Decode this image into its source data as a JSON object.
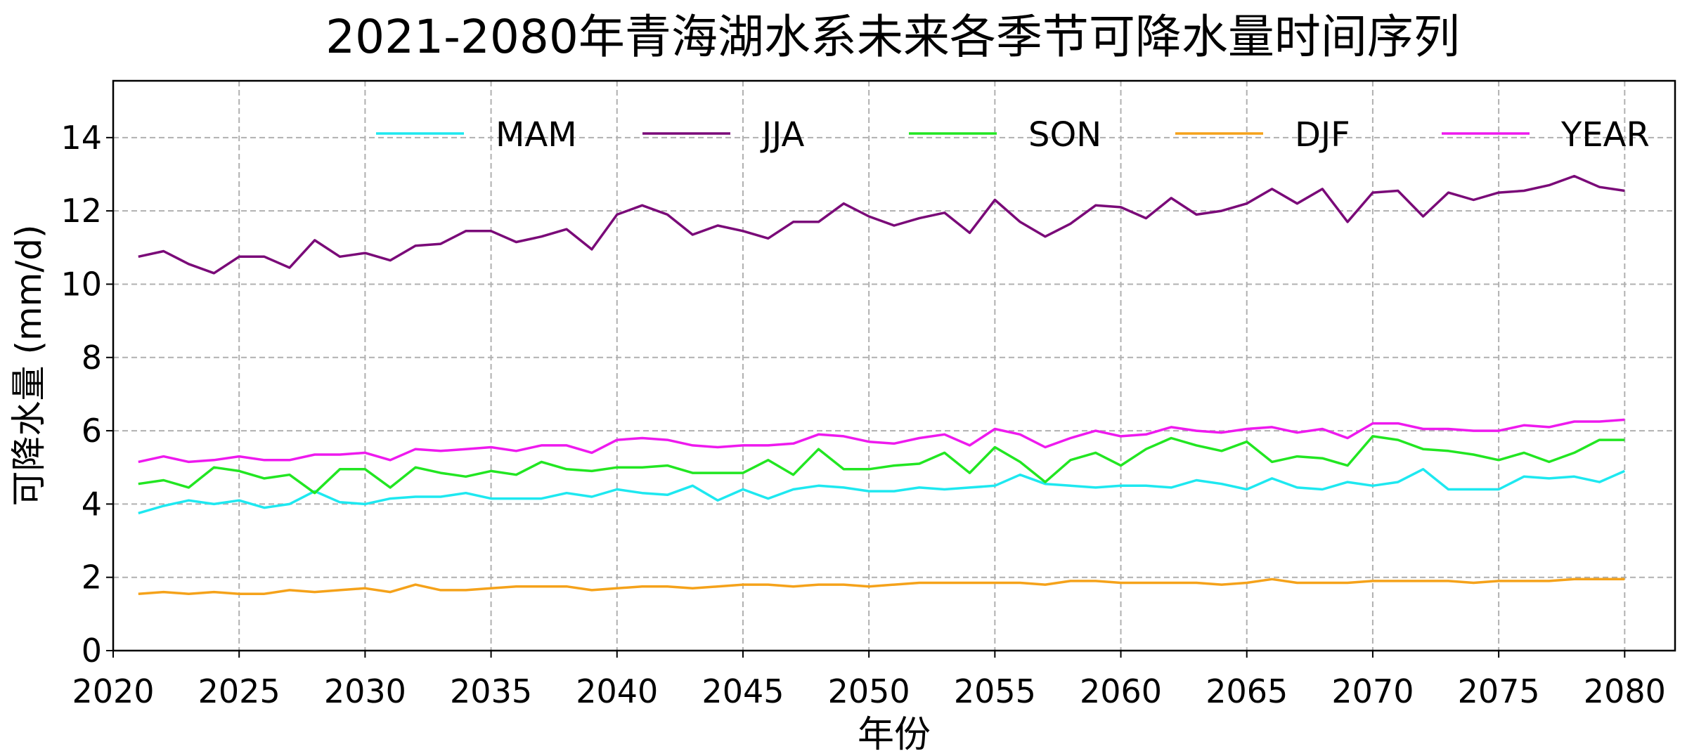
{
  "chart_data": {
    "type": "line",
    "title": "2021-2080年青海湖水系未来各季节可降水量时间序列",
    "xlabel": "年份",
    "ylabel": "可降水量 (mm/d)",
    "xlim": [
      2020,
      2082
    ],
    "ylim": [
      0,
      15.55
    ],
    "xticks": [
      2020,
      2025,
      2030,
      2035,
      2040,
      2045,
      2050,
      2055,
      2060,
      2065,
      2070,
      2075,
      2080
    ],
    "yticks": [
      0,
      2,
      4,
      6,
      8,
      10,
      12,
      14
    ],
    "grid": true,
    "legend_placement": "top",
    "x_start": 2021,
    "series": [
      {
        "name": "MAM",
        "color": "#1ee8f0",
        "values": [
          3.75,
          3.95,
          4.1,
          4.0,
          4.1,
          3.9,
          4.0,
          4.35,
          4.05,
          4.0,
          4.15,
          4.2,
          4.2,
          4.3,
          4.15,
          4.15,
          4.15,
          4.3,
          4.2,
          4.4,
          4.3,
          4.25,
          4.5,
          4.1,
          4.4,
          4.15,
          4.4,
          4.5,
          4.45,
          4.35,
          4.35,
          4.45,
          4.4,
          4.45,
          4.5,
          4.8,
          4.55,
          4.5,
          4.45,
          4.5,
          4.5,
          4.45,
          4.65,
          4.55,
          4.4,
          4.7,
          4.45,
          4.4,
          4.6,
          4.5,
          4.6,
          4.95,
          4.4,
          4.4,
          4.4,
          4.75,
          4.7,
          4.75,
          4.6,
          4.9
        ]
      },
      {
        "name": "JJA",
        "color": "#7a0a78",
        "values": [
          10.75,
          10.9,
          10.55,
          10.3,
          10.75,
          10.75,
          10.45,
          11.2,
          10.75,
          10.85,
          10.65,
          11.05,
          11.1,
          11.45,
          11.45,
          11.15,
          11.3,
          11.5,
          10.95,
          11.9,
          12.15,
          11.9,
          11.35,
          11.6,
          11.45,
          11.25,
          11.7,
          11.7,
          12.2,
          11.85,
          11.6,
          11.8,
          11.95,
          11.4,
          12.3,
          11.7,
          11.3,
          11.65,
          12.15,
          12.1,
          11.8,
          12.35,
          11.9,
          12.0,
          12.2,
          12.6,
          12.2,
          12.6,
          11.7,
          12.5,
          12.55,
          11.85,
          12.5,
          12.3,
          12.5,
          12.55,
          12.7,
          12.95,
          12.65,
          12.55
        ]
      },
      {
        "name": "SON",
        "color": "#22e622",
        "values": [
          4.55,
          4.65,
          4.45,
          5.0,
          4.9,
          4.7,
          4.8,
          4.3,
          4.95,
          4.95,
          4.45,
          5.0,
          4.85,
          4.75,
          4.9,
          4.8,
          5.15,
          4.95,
          4.9,
          5.0,
          5.0,
          5.05,
          4.85,
          4.85,
          4.85,
          5.2,
          4.8,
          5.5,
          4.95,
          4.95,
          5.05,
          5.1,
          5.4,
          4.85,
          5.55,
          5.15,
          4.6,
          5.2,
          5.4,
          5.05,
          5.5,
          5.8,
          5.6,
          5.45,
          5.7,
          5.15,
          5.3,
          5.25,
          5.05,
          5.85,
          5.75,
          5.5,
          5.45,
          5.35,
          5.2,
          5.4,
          5.15,
          5.4,
          5.75,
          5.75
        ]
      },
      {
        "name": "DJF",
        "color": "#f5a21a",
        "values": [
          1.55,
          1.6,
          1.55,
          1.6,
          1.55,
          1.55,
          1.65,
          1.6,
          1.65,
          1.7,
          1.6,
          1.8,
          1.65,
          1.65,
          1.7,
          1.75,
          1.75,
          1.75,
          1.65,
          1.7,
          1.75,
          1.75,
          1.7,
          1.75,
          1.8,
          1.8,
          1.75,
          1.8,
          1.8,
          1.75,
          1.8,
          1.85,
          1.85,
          1.85,
          1.85,
          1.85,
          1.8,
          1.9,
          1.9,
          1.85,
          1.85,
          1.85,
          1.85,
          1.8,
          1.85,
          1.95,
          1.85,
          1.85,
          1.85,
          1.9,
          1.9,
          1.9,
          1.9,
          1.85,
          1.9,
          1.9,
          1.9,
          1.95,
          1.95,
          1.95
        ]
      },
      {
        "name": "YEAR",
        "color": "#ee1aee",
        "values": [
          5.15,
          5.3,
          5.15,
          5.2,
          5.3,
          5.2,
          5.2,
          5.35,
          5.35,
          5.4,
          5.2,
          5.5,
          5.45,
          5.5,
          5.55,
          5.45,
          5.6,
          5.6,
          5.4,
          5.75,
          5.8,
          5.75,
          5.6,
          5.55,
          5.6,
          5.6,
          5.65,
          5.9,
          5.85,
          5.7,
          5.65,
          5.8,
          5.9,
          5.6,
          6.05,
          5.9,
          5.55,
          5.8,
          6.0,
          5.85,
          5.9,
          6.1,
          6.0,
          5.95,
          6.05,
          6.1,
          5.95,
          6.05,
          5.8,
          6.2,
          6.2,
          6.05,
          6.05,
          6.0,
          6.0,
          6.15,
          6.1,
          6.25,
          6.25,
          6.3
        ]
      }
    ]
  }
}
